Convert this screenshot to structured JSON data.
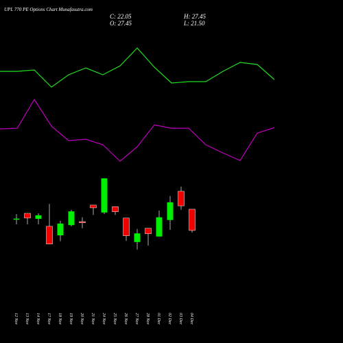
{
  "chart_data": [
    {
      "type": "line",
      "title": "UPL 770 PE Options Chart Munafasutra.com",
      "ylim": [
        0,
        250
      ],
      "series": [
        {
          "color": "#1fe01f",
          "values": [
            146,
            146,
            148,
            123,
            141,
            151,
            141,
            154,
            180,
            152,
            129,
            131,
            131,
            146,
            159,
            156,
            134
          ]
        },
        {
          "color": "#c000c0",
          "values": [
            62,
            63,
            105,
            66,
            45,
            47,
            39,
            15,
            36,
            68,
            63,
            63,
            39,
            27,
            16,
            56,
            64
          ]
        }
      ]
    },
    {
      "type": "candlestick",
      "summary": [
        "C: 22.05",
        "H: 27.45",
        "O: 27.45",
        "L: 21.50"
      ],
      "categories": [
        "12 Nov",
        "13 Nov",
        "14 Nov",
        "17 Nov",
        "18 Nov",
        "19 Nov",
        "20 Nov",
        "21 Nov",
        "24 Nov",
        "25 Nov",
        "26 Nov",
        "27 Nov",
        "28 Nov",
        "01 Dec",
        "02 Dec",
        "03 Dec",
        "04 Dec"
      ],
      "open": [
        25.0,
        26.4,
        25.0,
        23.1,
        20.8,
        23.4,
        24.3,
        28.5,
        26.6,
        28.1,
        25.2,
        19.1,
        22.6,
        20.5,
        24.7,
        32.0,
        27.45
      ],
      "high": [
        26.2,
        26.4,
        26.4,
        28.8,
        24.5,
        27.3,
        25.4,
        28.5,
        35.3,
        28.1,
        25.2,
        22.4,
        22.6,
        27.1,
        30.8,
        33.2,
        27.45
      ],
      "low": [
        23.6,
        23.6,
        23.6,
        18.6,
        19.3,
        23.1,
        22.6,
        26.0,
        26.2,
        26.0,
        19.4,
        17.2,
        18.2,
        20.5,
        22.2,
        27.3,
        21.5
      ],
      "close": [
        25.05,
        25.2,
        25.9,
        18.6,
        23.8,
        26.9,
        24.0,
        27.8,
        35.3,
        26.8,
        20.7,
        21.3,
        21.2,
        25.4,
        29.2,
        28.3,
        22.05
      ],
      "up_color": "#00ee00",
      "down_color": "#ee0000",
      "ylim": [
        10,
        40
      ]
    }
  ]
}
